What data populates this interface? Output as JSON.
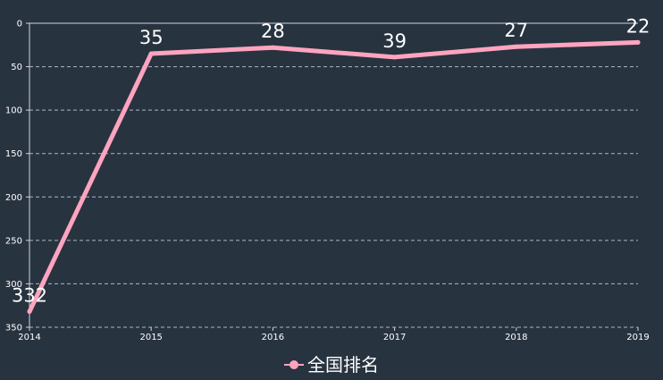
{
  "chart_data": {
    "type": "line",
    "x": [
      "2014",
      "2015",
      "2016",
      "2017",
      "2018",
      "2019"
    ],
    "series": [
      {
        "name": "全国排名",
        "values": [
          332,
          35,
          28,
          39,
          27,
          22
        ],
        "color": "#ffa4be"
      }
    ],
    "yticks": [
      "0",
      "50",
      "100",
      "150",
      "200",
      "250",
      "300",
      "350"
    ],
    "ylim": [
      0,
      350
    ],
    "y_inverted": true,
    "grid": "horizontal dashed",
    "legend": "bottom-center"
  },
  "colors": {
    "background": "#283340",
    "axis": "#cfd6de",
    "grid": "#aeb7c2",
    "text": "#ffffff"
  }
}
